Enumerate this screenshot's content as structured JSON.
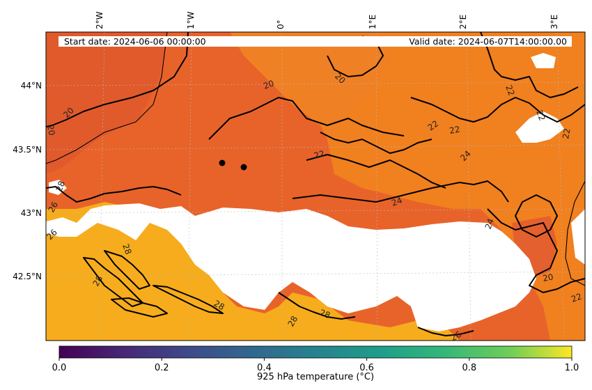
{
  "header": {
    "start_date": "Start date: 2024-06-06 00:00:00",
    "valid_date": "Valid date: 2024-06-07T14:00:00.00"
  },
  "axes": {
    "lon_labels": [
      "2°W",
      "1°W",
      "0°",
      "1°E",
      "2°E",
      "3°E"
    ],
    "lat_labels": [
      "44°N",
      "43.5°N",
      "43°N",
      "42.5°N"
    ]
  },
  "contour_labels": [
    "20",
    "20",
    "20",
    "20",
    "22",
    "22",
    "22",
    "22",
    "22",
    "22",
    "24",
    "24",
    "24",
    "26",
    "26",
    "26",
    "28",
    "28",
    "28",
    "28",
    "28",
    "28",
    "20",
    "22"
  ],
  "colorbar": {
    "label": "925 hPa temperature (°C)",
    "ticks": [
      "0.0",
      "0.2",
      "0.4",
      "0.6",
      "0.8",
      "1.0"
    ],
    "range": [
      0,
      1
    ],
    "colormap": "viridis"
  },
  "colors": {
    "field_warm": "#e8632a",
    "field_orange": "#f1801f",
    "field_yellow": "#f6ac1c",
    "missing": "#ffffff"
  }
}
